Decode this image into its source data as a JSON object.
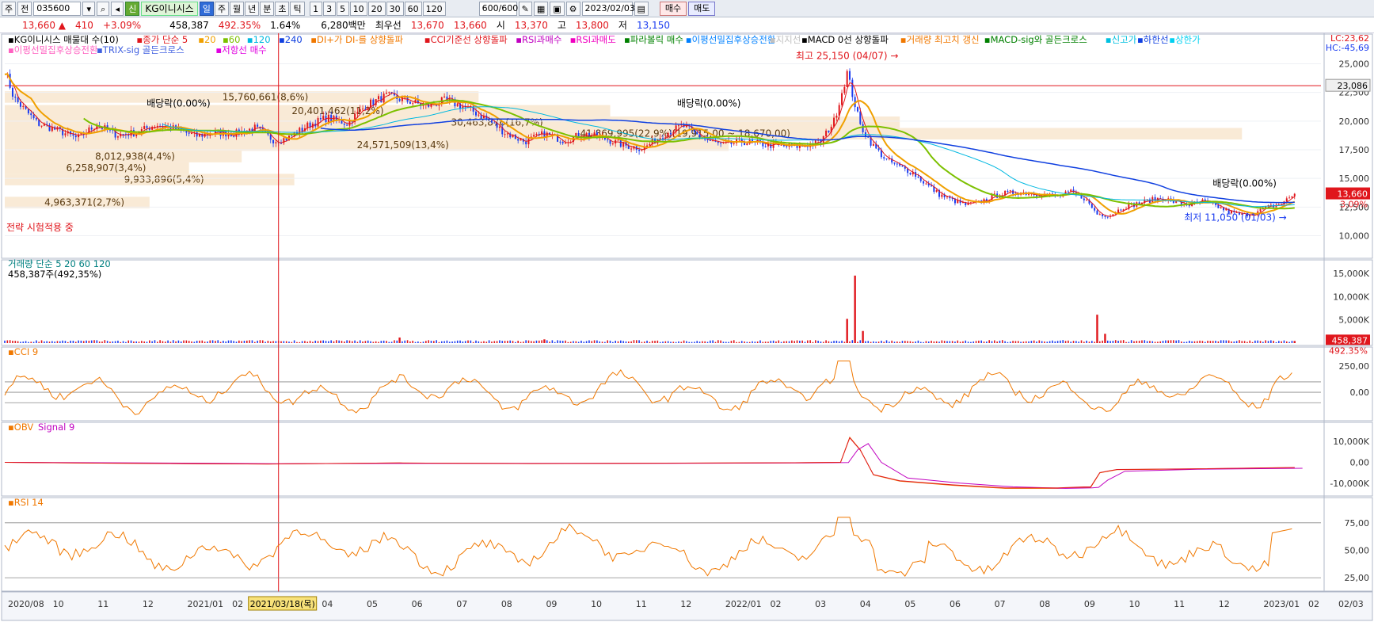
{
  "toolbar": {
    "period": "주",
    "prev": "전",
    "code": "035600",
    "credit": "신",
    "name": "KG이니시스",
    "tabs": [
      "일",
      "주",
      "월",
      "년",
      "분",
      "초",
      "틱"
    ],
    "minutes": [
      "1",
      "3",
      "5",
      "10",
      "20",
      "30",
      "60",
      "120"
    ],
    "count": "600/600",
    "date": "2023/02/03",
    "buy": "매수",
    "sell": "매도"
  },
  "quote": {
    "price": "13,660 ▲",
    "change": "410",
    "pct": "+3.09%",
    "volume": "458,387",
    "vol_pct": "492.35%",
    "turnover": "1.64%",
    "amount": "6,280백만",
    "best_label": "최우선",
    "best_ask": "13,670",
    "best_bid": "13,660",
    "open_label": "시",
    "open": "13,370",
    "high_label": "고",
    "high": "13,800",
    "low_label": "저",
    "low": "13,150"
  },
  "legend": {
    "line1": [
      {
        "t": "KG이니시스 매물대 수(10)",
        "c": "#000000"
      },
      {
        "t": "종가 단순 5",
        "c": "#e0161c"
      },
      {
        "t": "20",
        "c": "#f0a000"
      },
      {
        "t": "60",
        "c": "#7cc000"
      },
      {
        "t": "120",
        "c": "#00b8e0"
      },
      {
        "t": "240",
        "c": "#1040e0"
      },
      {
        "t": "DI+가 DI-를 상향돌파",
        "c": "#f07800"
      },
      {
        "t": "CCI기준선 상향돌파",
        "c": "#e0161c"
      },
      {
        "t": "RSI과매수",
        "c": "#c000c0"
      },
      {
        "t": "RSI과매도",
        "c": "#f000c0"
      },
      {
        "t": "파라볼릭 매수",
        "c": "#008000"
      },
      {
        "t": "이평선밀집후상승전환",
        "c": "#0080ff"
      },
      {
        "t": "지지선",
        "c": "#c0c0c0"
      },
      {
        "t": "MACD 0선 상향돌파",
        "c": "#000000"
      },
      {
        "t": "거래량 최고치 갱신",
        "c": "#f07800"
      },
      {
        "t": "MACD-sig와 골든크로스",
        "c": "#008000"
      },
      {
        "t": "신고가",
        "c": "#00c0e0"
      },
      {
        "t": "하한선",
        "c": "#1040e0"
      },
      {
        "t": "상한가",
        "c": "#00d0f0"
      }
    ],
    "line2": [
      {
        "t": "이평선밀집후상승전환",
        "c": "#ff60c0"
      },
      {
        "t": "TRIX-sig 골든크로스",
        "c": "#4060e0"
      },
      {
        "t": "저항선 매수",
        "c": "#e000e0"
      }
    ]
  },
  "colors": {
    "up": "#e0161c",
    "down": "#1b3cf0",
    "zone": "#f8e8d4",
    "panel_bg": "#ffffff",
    "border": "#b0b8c8"
  },
  "chart_data": [
    {
      "type": "candlestick",
      "panel": "price",
      "title": "KG이니시스",
      "ylim": [
        9000,
        26000
      ],
      "y_ticks": [
        "25,000",
        "22,500",
        "20,000",
        "17,500",
        "15,000",
        "12,500",
        "10,000"
      ],
      "y_tick_values": [
        25000,
        22500,
        20000,
        17500,
        15000,
        12500,
        10000
      ],
      "x_labels": [
        "2020/08",
        "10",
        "11",
        "12",
        "2021/01",
        "02",
        "03",
        "04",
        "05",
        "06",
        "07",
        "08",
        "09",
        "10",
        "11",
        "12",
        "2022/01",
        "02",
        "03",
        "04",
        "05",
        "06",
        "07",
        "08",
        "09",
        "10",
        "11",
        "12",
        "2023/01",
        "02",
        "02/03"
      ],
      "close_series": [
        [
          0,
          24500
        ],
        [
          7,
          22000
        ],
        [
          15,
          21000
        ],
        [
          25,
          19800
        ],
        [
          40,
          19200
        ],
        [
          55,
          18500
        ],
        [
          70,
          19700
        ],
        [
          85,
          18800
        ],
        [
          100,
          19000
        ],
        [
          115,
          19700
        ],
        [
          130,
          19300
        ],
        [
          145,
          18700
        ],
        [
          160,
          19000
        ],
        [
          175,
          18900
        ],
        [
          190,
          19400
        ],
        [
          205,
          18300
        ],
        [
          215,
          18500
        ],
        [
          230,
          19600
        ],
        [
          245,
          20300
        ],
        [
          260,
          19800
        ],
        [
          275,
          21400
        ],
        [
          290,
          22200
        ],
        [
          305,
          21800
        ],
        [
          320,
          21300
        ],
        [
          335,
          21800
        ],
        [
          350,
          21200
        ],
        [
          365,
          20300
        ],
        [
          380,
          19000
        ],
        [
          395,
          18200
        ],
        [
          410,
          18900
        ],
        [
          425,
          18300
        ],
        [
          440,
          18900
        ],
        [
          455,
          18500
        ],
        [
          470,
          17900
        ],
        [
          485,
          17600
        ],
        [
          500,
          18800
        ],
        [
          515,
          19600
        ],
        [
          530,
          18500
        ],
        [
          545,
          17900
        ],
        [
          560,
          18200
        ],
        [
          575,
          18000
        ],
        [
          590,
          17800
        ],
        [
          605,
          17800
        ],
        [
          620,
          18200
        ],
        [
          630,
          20000
        ],
        [
          640,
          24200
        ],
        [
          650,
          19600
        ],
        [
          660,
          17800
        ],
        [
          670,
          16600
        ],
        [
          680,
          16000
        ],
        [
          690,
          15500
        ],
        [
          700,
          14500
        ],
        [
          710,
          13600
        ],
        [
          720,
          13100
        ],
        [
          730,
          12700
        ],
        [
          740,
          12900
        ],
        [
          750,
          13400
        ],
        [
          760,
          13700
        ],
        [
          770,
          13800
        ],
        [
          780,
          13700
        ],
        [
          790,
          13600
        ],
        [
          800,
          13400
        ],
        [
          810,
          13800
        ],
        [
          820,
          13300
        ],
        [
          830,
          11900
        ],
        [
          840,
          11800
        ],
        [
          850,
          12500
        ],
        [
          860,
          12800
        ],
        [
          870,
          13100
        ],
        [
          880,
          13300
        ],
        [
          890,
          12900
        ],
        [
          900,
          12700
        ],
        [
          910,
          13000
        ],
        [
          920,
          12600
        ],
        [
          930,
          12100
        ],
        [
          940,
          11800
        ],
        [
          950,
          12000
        ],
        [
          960,
          12500
        ],
        [
          970,
          12800
        ],
        [
          980,
          13660
        ]
      ],
      "price_labels": [
        {
          "text": "최고 25,150 (04/07) →",
          "x": 640,
          "value": 25150
        },
        {
          "text": "최저 11,050 (01/03) →",
          "x": 935,
          "value": 11050
        },
        {
          "text": "배당락(0.00%)",
          "x": 132,
          "value": 21000
        },
        {
          "text": "배당락(0.00%)",
          "x": 535,
          "value": 21000
        },
        {
          "text": "배당락(0.00%)",
          "x": 942,
          "value": 14000
        }
      ],
      "volume_profile": [
        {
          "text": "15,760,661(8,6%)",
          "top": 22600,
          "bottom": 21600,
          "len": 0.36
        },
        {
          "text": "20,401,462(11,2%)",
          "top": 21400,
          "bottom": 20400,
          "len": 0.46
        },
        {
          "text": "30,463,876(16,7%)",
          "top": 20400,
          "bottom": 19400,
          "len": 0.68
        },
        {
          "text": "41,869,995(22,9%)(19,915,00 ~ 18,670,00)",
          "top": 19400,
          "bottom": 18400,
          "len": 0.94
        },
        {
          "text": "24,571,509(13,4%)",
          "top": 18400,
          "bottom": 17400,
          "len": 0.55
        },
        {
          "text": "8,012,938(4,4%)",
          "top": 17400,
          "bottom": 16400,
          "len": 0.18
        },
        {
          "text": "6,258,907(3,4%)",
          "top": 16400,
          "bottom": 15400,
          "len": 0.14
        },
        {
          "text": "9,933,896(5,4%)",
          "top": 15400,
          "bottom": 14400,
          "len": 0.22
        },
        {
          "text": "4,963,371(2,7%)",
          "top": 13400,
          "bottom": 12400,
          "len": 0.11
        }
      ],
      "right_labels": {
        "lc": "LC:23,62",
        "hc": "HC:-45,69",
        "resistance": "23,086",
        "current": "13,660",
        "pct": "3.09%"
      },
      "note": "전략 시험적용 중"
    },
    {
      "type": "bar",
      "panel": "volume",
      "legend": [
        "거래량",
        "단순 5",
        "20",
        "60",
        "120"
      ],
      "current": "458,387주(492,35%)",
      "y_ticks": [
        "15,000K",
        "10,000K",
        "5,000K"
      ],
      "y_tick_values": [
        15000,
        10000,
        5000
      ],
      "ylim": [
        0,
        16000
      ],
      "right_labels": [
        "458,387",
        "492.35%"
      ],
      "spikes": [
        [
          300,
          1200
        ],
        [
          410,
          800
        ],
        [
          640,
          5200
        ],
        [
          646,
          14500
        ],
        [
          652,
          2600
        ],
        [
          830,
          6100
        ],
        [
          836,
          2000
        ],
        [
          980,
          460
        ]
      ]
    },
    {
      "type": "line",
      "panel": "cci",
      "legend": [
        "CCI 9"
      ],
      "y_ticks": [
        "250,00",
        "0,00"
      ],
      "y_tick_values": [
        250,
        0
      ],
      "ylim": [
        -250,
        350
      ]
    },
    {
      "type": "line",
      "panel": "obv",
      "legend": [
        "OBV",
        "Signal 9"
      ],
      "y_ticks": [
        "10,000K",
        "0,00",
        "-10,000K"
      ],
      "y_tick_values": [
        10000,
        0,
        -10000
      ],
      "ylim": [
        -15000,
        15000
      ],
      "series": [
        [
          0,
          0
        ],
        [
          100,
          -500
        ],
        [
          200,
          -800
        ],
        [
          300,
          -300
        ],
        [
          400,
          -600
        ],
        [
          500,
          -400
        ],
        [
          600,
          -200
        ],
        [
          635,
          0
        ],
        [
          642,
          12000
        ],
        [
          650,
          6000
        ],
        [
          660,
          -6000
        ],
        [
          680,
          -9000
        ],
        [
          720,
          -11000
        ],
        [
          760,
          -12500
        ],
        [
          800,
          -12500
        ],
        [
          820,
          -12000
        ],
        [
          825,
          -12000
        ],
        [
          832,
          -5000
        ],
        [
          845,
          -3500
        ],
        [
          900,
          -3200
        ],
        [
          980,
          -2500
        ]
      ]
    },
    {
      "type": "line",
      "panel": "rsi",
      "legend": [
        "RSI 14"
      ],
      "y_ticks": [
        "75,00",
        "50,00",
        "25,00"
      ],
      "y_tick_values": [
        75,
        50,
        25
      ],
      "ylim": [
        15,
        90
      ]
    }
  ],
  "x_axis": {
    "highlight_date": "2021/03/18(목)"
  }
}
